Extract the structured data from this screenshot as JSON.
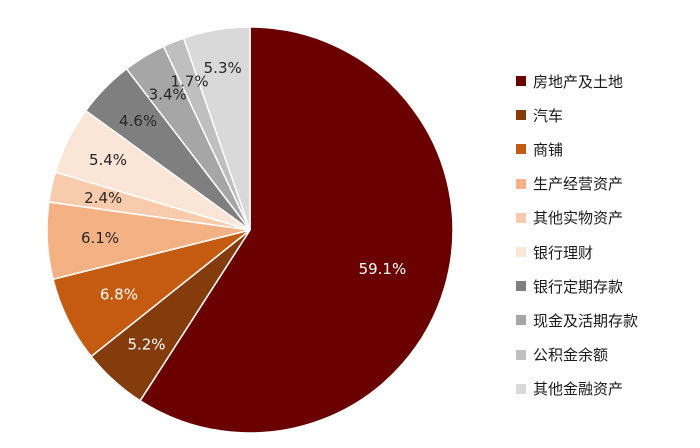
{
  "chart_data": {
    "type": "pie",
    "title": "",
    "start": "12 o'clock, clockwise",
    "legend_position": "right",
    "slices": [
      {
        "name": "房地产及土地",
        "value": 59.1,
        "label": "59.1%",
        "color": "#6b0000",
        "label_color": "#ffffff"
      },
      {
        "name": "汽车",
        "value": 5.2,
        "label": "5.2%",
        "color": "#843c0c",
        "label_color": "#ffffff"
      },
      {
        "name": "商铺",
        "value": 6.8,
        "label": "6.8%",
        "color": "#c55a11",
        "label_color": "#ffffff"
      },
      {
        "name": "生产经营资产",
        "value": 6.1,
        "label": "6.1%",
        "color": "#f4b183",
        "label_color": "#262626"
      },
      {
        "name": "其他实物资产",
        "value": 2.4,
        "label": "2.4%",
        "color": "#f8cbad",
        "label_color": "#262626"
      },
      {
        "name": "银行理财",
        "value": 5.4,
        "label": "5.4%",
        "color": "#fbe5d6",
        "label_color": "#262626"
      },
      {
        "name": "银行定期存款",
        "value": 4.6,
        "label": "4.6%",
        "color": "#7f7f7f",
        "label_color": "#262626"
      },
      {
        "name": "现金及活期存款",
        "value": 3.4,
        "label": "3.4%",
        "color": "#a6a6a6",
        "label_color": "#262626"
      },
      {
        "name": "公积金余额",
        "value": 1.7,
        "label": "1.7%",
        "color": "#bfbfbf",
        "label_color": "#262626"
      },
      {
        "name": "其他金融资产",
        "value": 5.3,
        "label": "5.3%",
        "color": "#d9d9d9",
        "label_color": "#262626"
      }
    ]
  }
}
